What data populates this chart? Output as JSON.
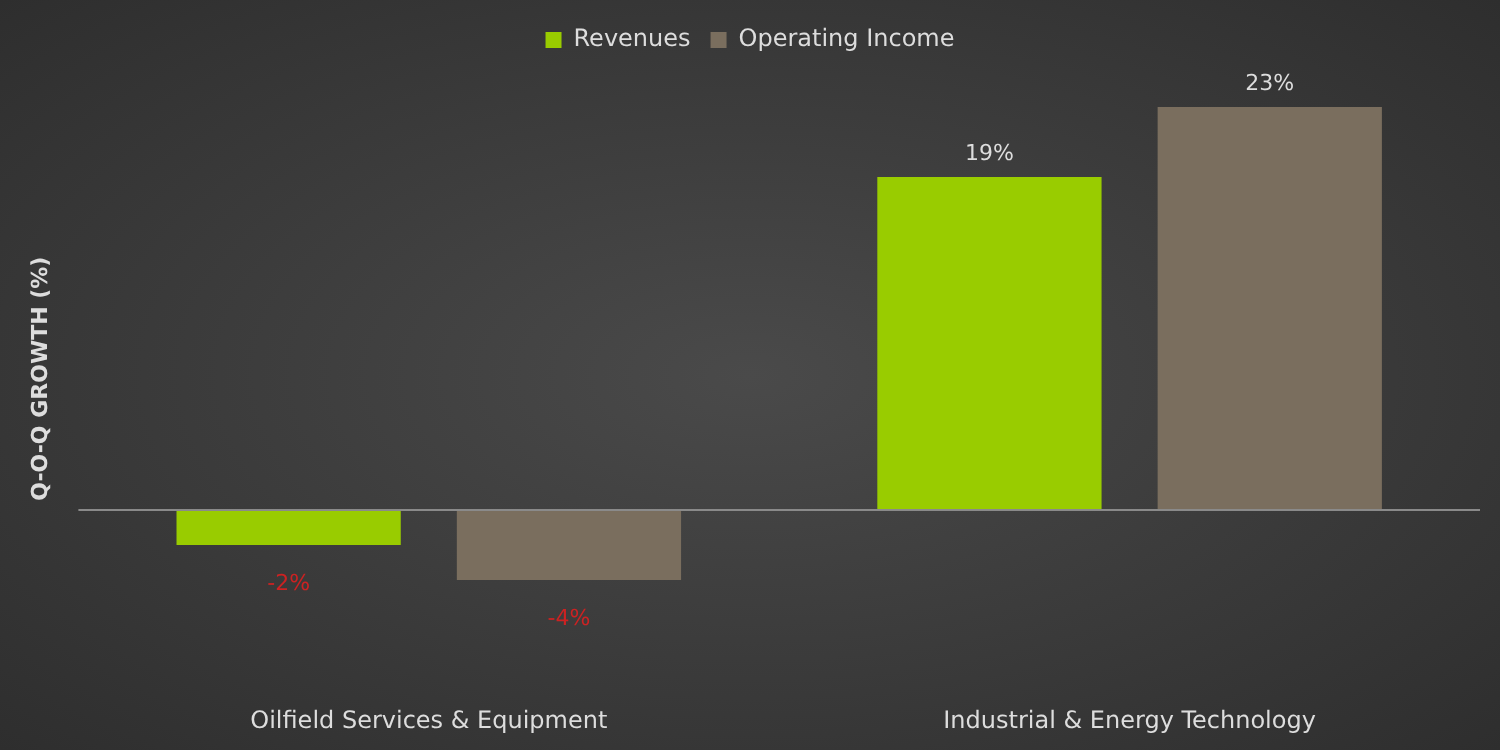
{
  "chart_data": {
    "type": "bar",
    "ylabel": "Q-O-Q GROWTH (%)",
    "categories": [
      "Oilfield Services & Equipment",
      "Industrial & Energy Technology"
    ],
    "series": [
      {
        "name": "Revenues",
        "color": "#99cc00",
        "values": [
          -2,
          19
        ],
        "value_labels": [
          "-2%",
          "19%"
        ]
      },
      {
        "name": "Operating Income",
        "color": "#7a6e5e",
        "values": [
          -4,
          23
        ],
        "value_labels": [
          "-4%",
          "23%"
        ]
      }
    ],
    "legend": "top",
    "grid": false
  }
}
